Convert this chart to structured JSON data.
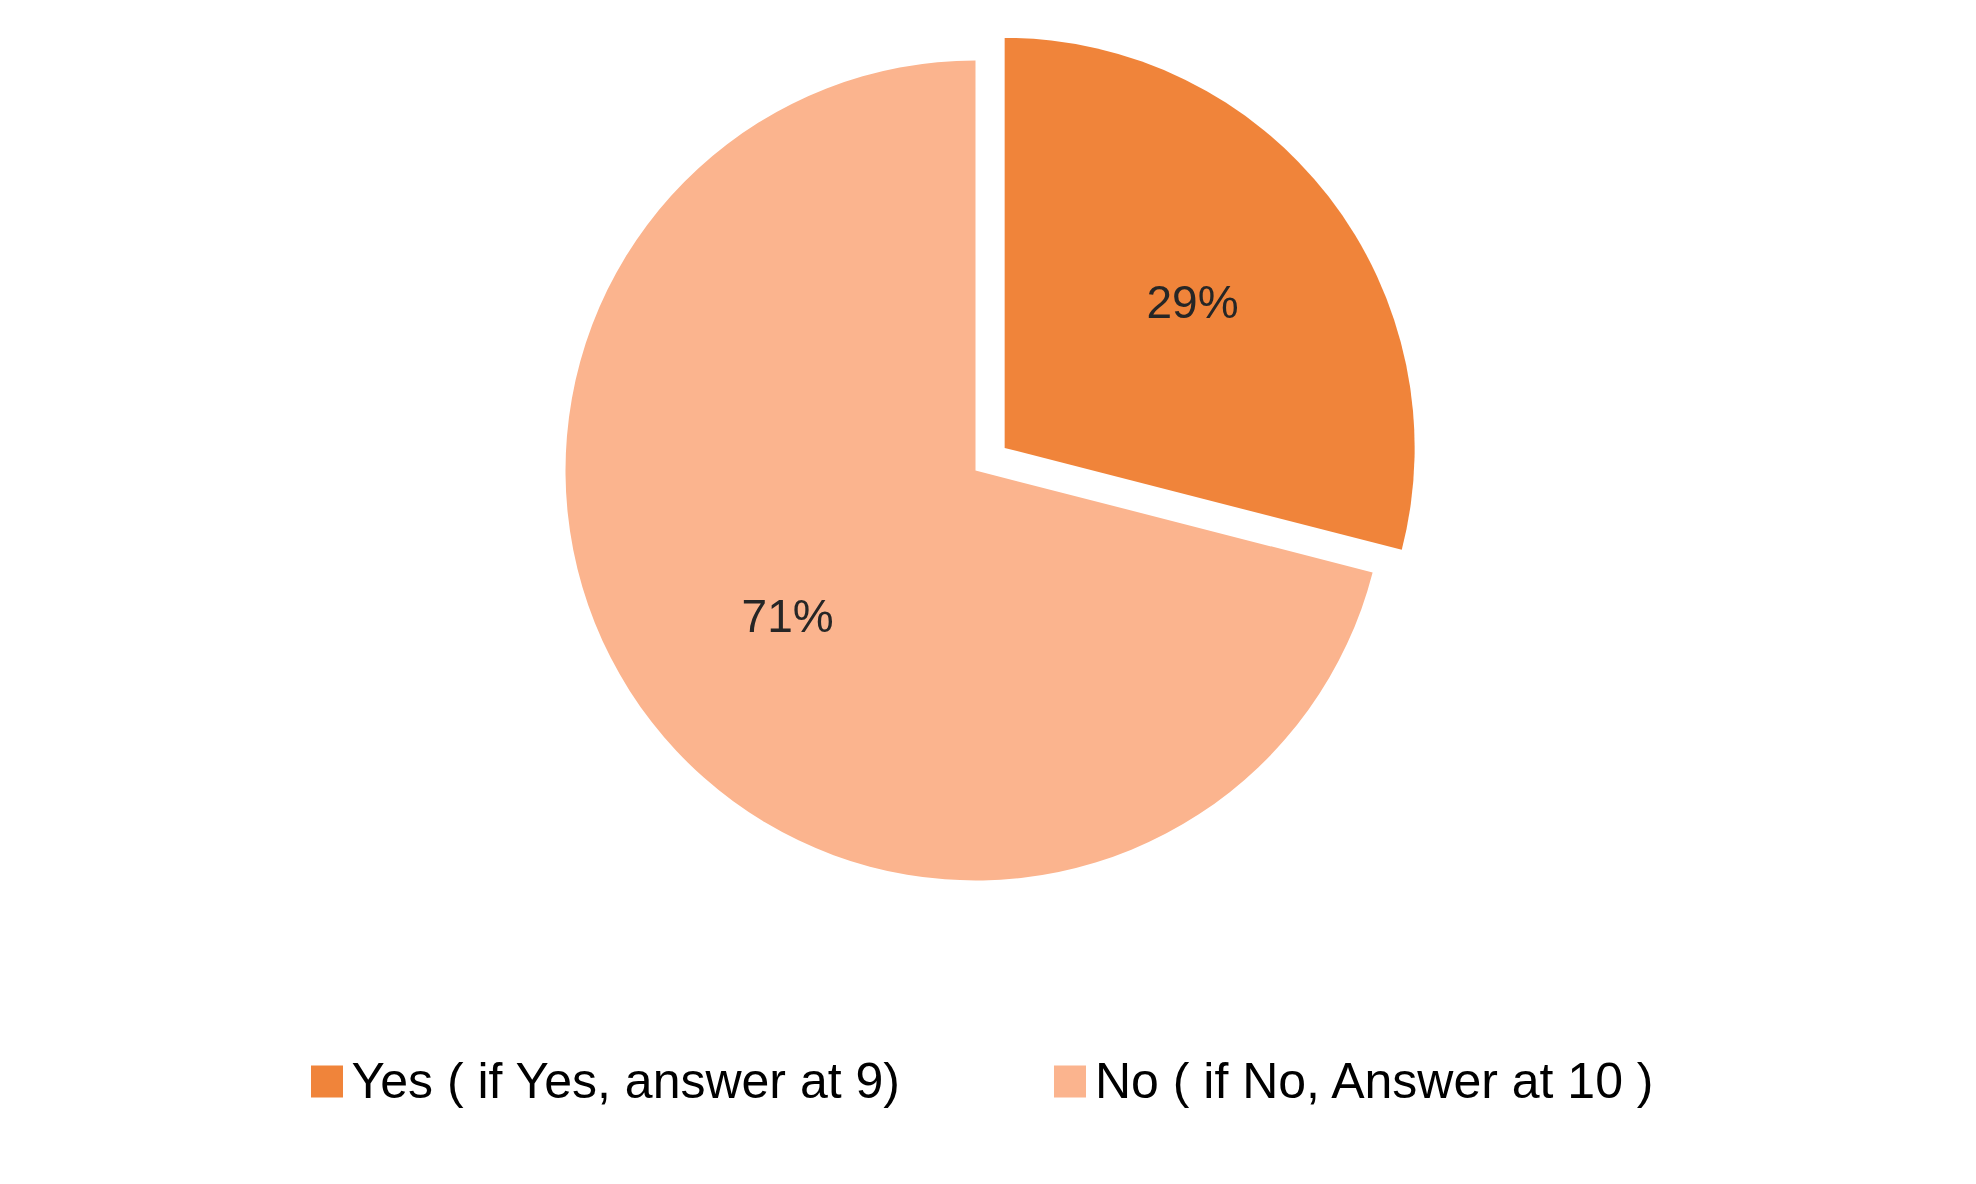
{
  "chart_data": {
    "type": "pie",
    "categories": [
      "Yes ( if Yes, answer at 9)",
      "No ( if No, Answer at 10 )"
    ],
    "values": [
      29,
      71
    ],
    "colors": [
      "#f0843a",
      "#fbb48e"
    ],
    "value_labels": [
      "29%",
      "71%"
    ],
    "legend": "bottom"
  }
}
